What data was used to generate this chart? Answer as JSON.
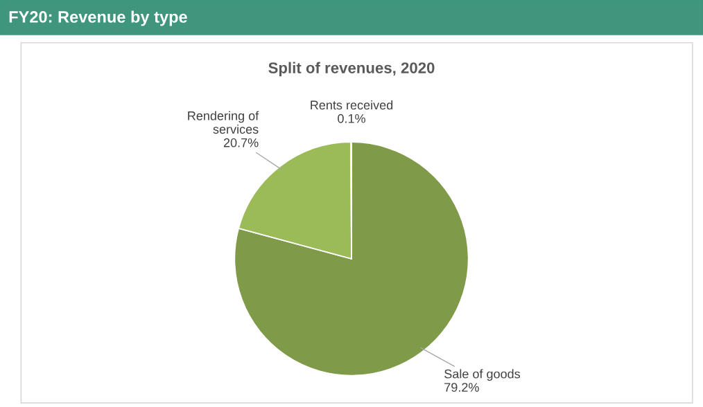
{
  "chart_data": {
    "type": "pie",
    "title": "FY20: Revenue by type",
    "subtitle": "Split of revenues, 2020",
    "categories": [
      "Sale of goods",
      "Rendering of\nservices",
      "Rents received"
    ],
    "values": [
      79.2,
      20.7,
      0.1
    ],
    "value_labels": [
      "79.2%",
      "20.7%",
      "0.1%"
    ],
    "colors": [
      "#7f9a48",
      "#9bbb59",
      "#c3d69b"
    ],
    "data_labels": true,
    "legend": false
  }
}
